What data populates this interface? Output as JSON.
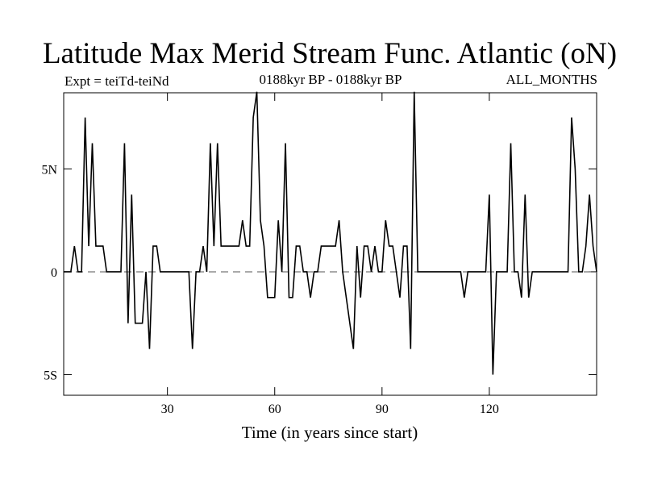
{
  "chart_data": {
    "type": "line",
    "title": "Latitude Max Merid Stream Func. Atlantic (oN)",
    "subtitle_left": "Expt = teiTd-teiNd",
    "subtitle_center": "0188kyr BP - 0188kyr BP",
    "subtitle_right": "ALL_MONTHS",
    "xlabel": "Time (in years since start)",
    "ylabel": "",
    "xlim": [
      1,
      150
    ],
    "ylim": [
      -6,
      8.7
    ],
    "zero_line": true,
    "x_ticks": [
      {
        "value": 30,
        "label": "30"
      },
      {
        "value": 60,
        "label": "60"
      },
      {
        "value": 90,
        "label": "90"
      },
      {
        "value": 120,
        "label": "120"
      }
    ],
    "y_ticks": [
      {
        "value": 5,
        "label": "5N"
      },
      {
        "value": 0,
        "label": "0"
      },
      {
        "value": -5,
        "label": "5S"
      }
    ],
    "series": [
      {
        "name": "Latitude Max",
        "color": "#000000",
        "x_start": 1,
        "values": [
          0,
          0,
          0,
          1.25,
          0,
          0,
          7.5,
          1.25,
          6.25,
          1.25,
          1.25,
          1.25,
          0,
          0,
          0,
          0,
          0,
          6.25,
          -2.5,
          3.75,
          -2.5,
          -2.5,
          -2.5,
          0,
          -3.75,
          1.25,
          1.25,
          0,
          0,
          0,
          0,
          0,
          0,
          0,
          0,
          0,
          -3.75,
          0,
          0,
          1.25,
          0,
          6.25,
          1.25,
          6.25,
          1.25,
          1.25,
          1.25,
          1.25,
          1.25,
          1.25,
          2.5,
          1.25,
          1.25,
          7.5,
          8.75,
          2.5,
          1.25,
          -1.25,
          -1.25,
          -1.25,
          2.5,
          0,
          6.25,
          -1.25,
          -1.25,
          1.25,
          1.25,
          0,
          0,
          -1.25,
          0,
          0,
          1.25,
          1.25,
          1.25,
          1.25,
          1.25,
          2.5,
          0,
          -1.25,
          -2.5,
          -3.75,
          1.25,
          -1.25,
          1.25,
          1.25,
          0,
          1.25,
          0,
          0,
          2.5,
          1.25,
          1.25,
          0,
          -1.25,
          1.25,
          1.25,
          -3.75,
          8.75,
          0,
          0,
          0,
          0,
          0,
          0,
          0,
          0,
          0,
          0,
          0,
          0,
          0,
          -1.25,
          0,
          0,
          0,
          0,
          0,
          0,
          3.75,
          -5,
          0,
          0,
          0,
          0,
          6.25,
          0,
          0,
          -1.25,
          3.75,
          -1.25,
          0,
          0,
          0,
          0,
          0,
          0,
          0,
          0,
          0,
          0,
          0,
          7.5,
          5,
          0,
          0,
          1.25,
          3.75,
          1.25,
          0
        ]
      }
    ]
  }
}
